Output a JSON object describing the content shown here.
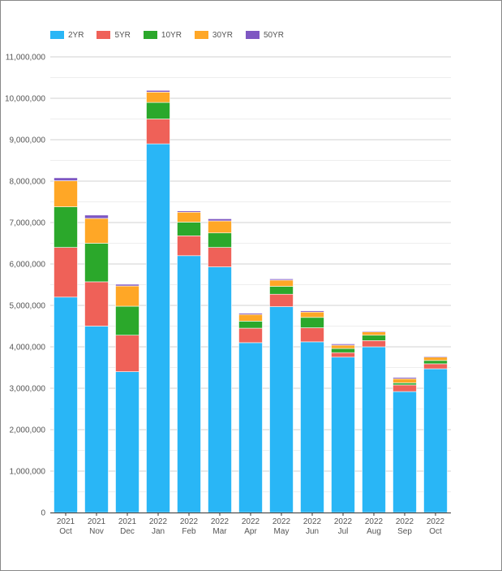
{
  "chart_data": {
    "type": "bar",
    "stacked": true,
    "categories": [
      [
        "2021",
        "Oct"
      ],
      [
        "2021",
        "Nov"
      ],
      [
        "2021",
        "Dec"
      ],
      [
        "2022",
        "Jan"
      ],
      [
        "2022",
        "Feb"
      ],
      [
        "2022",
        "Mar"
      ],
      [
        "2022",
        "Apr"
      ],
      [
        "2022",
        "May"
      ],
      [
        "2022",
        "Jun"
      ],
      [
        "2022",
        "Jul"
      ],
      [
        "2022",
        "Aug"
      ],
      [
        "2022",
        "Sep"
      ],
      [
        "2022",
        "Oct"
      ]
    ],
    "series": [
      {
        "name": "2YR",
        "color": "#29b6f6",
        "values": [
          5200000,
          4500000,
          3400000,
          8900000,
          6200000,
          5930000,
          4100000,
          4970000,
          4120000,
          3750000,
          4000000,
          2920000,
          3470000
        ]
      },
      {
        "name": "5YR",
        "color": "#ef6158",
        "values": [
          1200000,
          1070000,
          880000,
          600000,
          480000,
          470000,
          350000,
          300000,
          340000,
          110000,
          150000,
          160000,
          120000
        ]
      },
      {
        "name": "10YR",
        "color": "#2ba82b",
        "values": [
          980000,
          930000,
          700000,
          400000,
          330000,
          350000,
          170000,
          190000,
          250000,
          100000,
          130000,
          50000,
          80000
        ]
      },
      {
        "name": "30YR",
        "color": "#ffa726",
        "values": [
          630000,
          600000,
          490000,
          250000,
          240000,
          290000,
          160000,
          150000,
          130000,
          80000,
          80000,
          100000,
          80000
        ]
      },
      {
        "name": "50YR",
        "color": "#7e57c2",
        "values": [
          70000,
          80000,
          40000,
          40000,
          30000,
          50000,
          30000,
          30000,
          30000,
          30000,
          20000,
          30000,
          20000
        ]
      }
    ],
    "ylim": [
      0,
      11000000
    ],
    "yticks": [
      0,
      1000000,
      2000000,
      3000000,
      4000000,
      5000000,
      6000000,
      7000000,
      8000000,
      9000000,
      10000000,
      11000000
    ],
    "ytick_labels": [
      "0",
      "1,000,000",
      "2,000,000",
      "3,000,000",
      "4,000,000",
      "5,000,000",
      "6,000,000",
      "7,000,000",
      "8,000,000",
      "9,000,000",
      "10,000,000",
      "11,000,000"
    ],
    "grid": true,
    "legend_position": "top-left"
  }
}
